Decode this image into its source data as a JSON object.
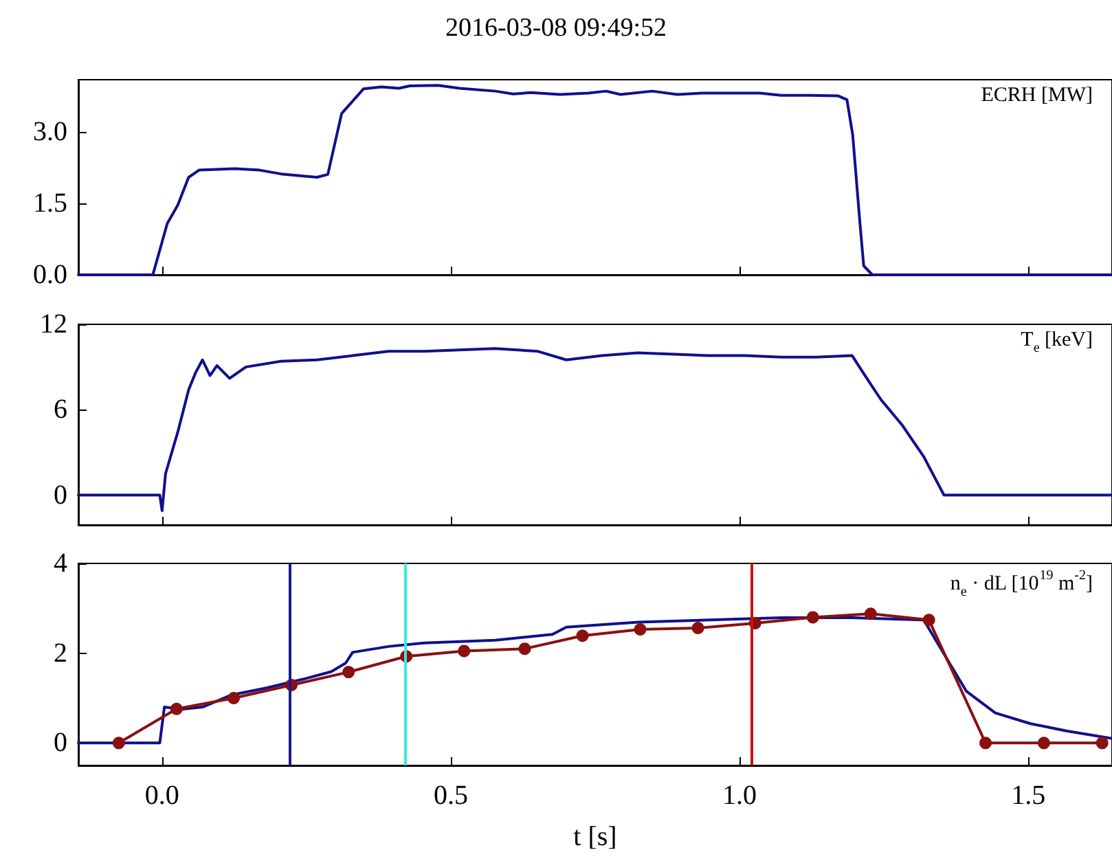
{
  "chart_data": [
    {
      "type": "line",
      "title": "2016-03-08 09:49:52",
      "ylabel": "ECRH [MW]",
      "xlim": [
        -0.145,
        1.645
      ],
      "ylim": [
        0,
        4.1
      ],
      "xticks": [
        {
          "value": 0,
          "label": null
        },
        {
          "value": 0.5,
          "label": null
        },
        {
          "value": 1,
          "label": null
        },
        {
          "value": 1.5,
          "label": null
        }
      ],
      "yticks": [
        {
          "value": 0,
          "label": "0.0"
        },
        {
          "value": 1.5,
          "label": "1.5"
        },
        {
          "value": 3,
          "label": "3.0"
        }
      ],
      "tick_labels": "y",
      "series": [
        {
          "color": "#10108c",
          "marker": "none",
          "x": [
            -0.145,
            -0.016,
            0.009,
            0.027,
            0.046,
            0.064,
            0.126,
            0.169,
            0.206,
            0.268,
            0.287,
            0.311,
            0.349,
            0.38,
            0.41,
            0.429,
            0.478,
            0.515,
            0.577,
            0.608,
            0.639,
            0.689,
            0.738,
            0.769,
            0.794,
            0.849,
            0.892,
            0.936,
            1.035,
            1.072,
            1.121,
            1.171,
            1.186,
            1.196,
            1.208,
            1.215,
            1.23,
            1.645
          ],
          "values": [
            0,
            0,
            1.08,
            1.46,
            2.05,
            2.2,
            2.23,
            2.2,
            2.12,
            2.05,
            2.11,
            3.39,
            3.91,
            3.95,
            3.92,
            3.97,
            3.98,
            3.92,
            3.86,
            3.8,
            3.83,
            3.79,
            3.82,
            3.86,
            3.79,
            3.86,
            3.79,
            3.82,
            3.82,
            3.77,
            3.77,
            3.76,
            3.68,
            2.94,
            1.16,
            0.19,
            0,
            0
          ]
        }
      ]
    },
    {
      "type": "line",
      "ylabel": "T$_{e}$ [keV]",
      "xlim": [
        -0.145,
        1.645
      ],
      "ylim": [
        -2.1,
        12
      ],
      "xticks": [
        {
          "value": 0,
          "label": null
        },
        {
          "value": 0.5,
          "label": null
        },
        {
          "value": 1,
          "label": null
        },
        {
          "value": 1.5,
          "label": null
        }
      ],
      "yticks": [
        0,
        6,
        12
      ],
      "tick_labels": "y",
      "series": [
        {
          "color": "#10108c",
          "marker": "none",
          "x": [
            -0.145,
            -0.004,
            0,
            0.006,
            0.027,
            0.046,
            0.058,
            0.07,
            0.083,
            0.095,
            0.117,
            0.145,
            0.206,
            0.268,
            0.33,
            0.392,
            0.454,
            0.577,
            0.651,
            0.7,
            0.762,
            0.824,
            0.886,
            0.948,
            1.01,
            1.072,
            1.133,
            1.195,
            1.214,
            1.245,
            1.282,
            1.319,
            1.354,
            1.645
          ],
          "values": [
            0,
            0,
            -1.1,
            1.5,
            4.4,
            7.4,
            8.6,
            9.5,
            8.4,
            9.1,
            8.2,
            9.0,
            9.4,
            9.5,
            9.8,
            10.1,
            10.1,
            10.3,
            10.1,
            9.5,
            9.8,
            10.0,
            9.9,
            9.8,
            9.8,
            9.7,
            9.7,
            9.8,
            8.6,
            6.7,
            4.9,
            2.7,
            0,
            0
          ]
        }
      ]
    },
    {
      "type": "line",
      "ylabel": "n$_{e}$ · dL [10$^{19}$ m$^{-2}$]",
      "xlabel": "t [s]",
      "xlim": [
        -0.145,
        1.645
      ],
      "ylim": [
        -0.5,
        4
      ],
      "xticks": [
        {
          "value": 0,
          "label": "0.0"
        },
        {
          "value": 0.5,
          "label": "0.5"
        },
        {
          "value": 1,
          "label": "1.0"
        },
        {
          "value": 1.5,
          "label": "1.5"
        }
      ],
      "yticks": [
        0,
        2,
        4
      ],
      "ref_lines": [
        {
          "axis": "x",
          "value": 0.221,
          "color": "#1a1a8c"
        },
        {
          "axis": "x",
          "value": 0.42,
          "color": "#33eedd"
        },
        {
          "axis": "x",
          "value": 1.023,
          "color": "#cc1111"
        }
      ],
      "series": [
        {
          "color": "#10108c",
          "marker": "none",
          "x": [
            -0.145,
            -0.004,
            0.004,
            0.033,
            0.07,
            0.12,
            0.182,
            0.244,
            0.293,
            0.318,
            0.33,
            0.392,
            0.454,
            0.577,
            0.676,
            0.7,
            0.824,
            0.948,
            1.072,
            1.195,
            1.319,
            1.356,
            1.393,
            1.443,
            1.504,
            1.566,
            1.645
          ],
          "values": [
            0,
            0,
            0.8,
            0.75,
            0.8,
            1.07,
            1.23,
            1.42,
            1.59,
            1.78,
            2.02,
            2.15,
            2.23,
            2.29,
            2.42,
            2.58,
            2.69,
            2.74,
            2.79,
            2.79,
            2.74,
            1.94,
            1.15,
            0.67,
            0.43,
            0.27,
            0.1
          ]
        },
        {
          "color": "#8b1010",
          "marker": "circle",
          "x": [
            -0.075,
            0.025,
            0.124,
            0.224,
            0.323,
            0.423,
            0.523,
            0.628,
            0.728,
            0.828,
            0.928,
            1.027,
            1.127,
            1.227,
            1.328,
            1.426,
            1.527,
            1.628
          ],
          "values": [
            0,
            0.76,
            1.0,
            1.29,
            1.58,
            1.93,
            2.05,
            2.1,
            2.39,
            2.53,
            2.56,
            2.67,
            2.8,
            2.88,
            2.74,
            0,
            0,
            0
          ]
        }
      ]
    }
  ]
}
